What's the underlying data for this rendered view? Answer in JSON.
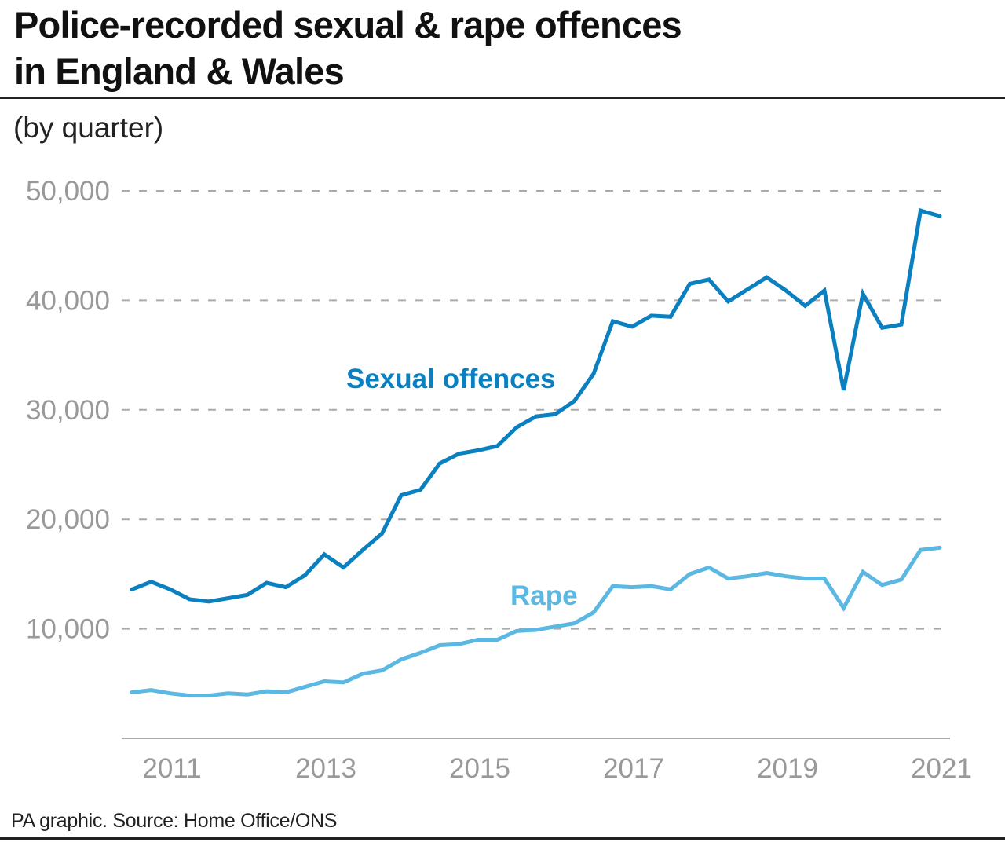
{
  "header": {
    "title_line1": "Police-recorded sexual & rape offences",
    "title_line2": "in England & Wales",
    "subtitle": "(by quarter)"
  },
  "footer": {
    "source": "PA graphic. Source: Home Office/ONS"
  },
  "chart_data": {
    "type": "line",
    "title": "Police-recorded sexual & rape offences in England & Wales",
    "subtitle": "(by quarter)",
    "xlabel": "",
    "ylabel": "",
    "ylim": [
      0,
      50000
    ],
    "xlim": [
      2010.5,
      2021.0
    ],
    "grid": true,
    "y_ticks": [
      10000,
      20000,
      30000,
      40000,
      50000
    ],
    "y_tick_labels": [
      "10,000",
      "20,000",
      "30,000",
      "40,000",
      "50,000"
    ],
    "x_ticks": [
      2011,
      2013,
      2015,
      2017,
      2019,
      2021
    ],
    "x_tick_labels": [
      "2011",
      "2013",
      "2015",
      "2017",
      "2019",
      "2021"
    ],
    "x": [
      2010.5,
      2010.75,
      2011,
      2011.25,
      2011.5,
      2011.75,
      2012,
      2012.25,
      2012.5,
      2012.75,
      2013,
      2013.25,
      2013.5,
      2013.75,
      2014,
      2014.25,
      2014.5,
      2014.75,
      2015,
      2015.25,
      2015.5,
      2015.75,
      2016,
      2016.25,
      2016.5,
      2016.75,
      2017,
      2017.25,
      2017.5,
      2017.75,
      2018,
      2018.25,
      2018.5,
      2018.75,
      2019,
      2019.25,
      2019.5,
      2019.75,
      2020,
      2020.25,
      2020.5,
      2020.75,
      2021
    ],
    "series": [
      {
        "name": "Sexual offences",
        "color": "#0a80c0",
        "values": [
          13600,
          14300,
          13600,
          12700,
          12500,
          12800,
          13100,
          14200,
          13800,
          14900,
          16800,
          15600,
          17200,
          18700,
          22200,
          22700,
          25100,
          26000,
          26300,
          26700,
          28400,
          29400,
          29600,
          30800,
          33300,
          38100,
          37600,
          38600,
          38500,
          41500,
          41900,
          39900,
          41000,
          42100,
          40900,
          39500,
          40900,
          31800,
          40600,
          37500,
          37800,
          48200,
          47700
        ]
      },
      {
        "name": "Rape",
        "color": "#5ab8e2",
        "values": [
          4200,
          4400,
          4100,
          3900,
          3900,
          4100,
          4000,
          4300,
          4200,
          4700,
          5200,
          5100,
          5900,
          6200,
          7200,
          7800,
          8500,
          8600,
          9000,
          9000,
          9800,
          9900,
          10200,
          10500,
          11500,
          13900,
          13800,
          13900,
          13600,
          15000,
          15600,
          14600,
          14800,
          15100,
          14800,
          14600,
          14600,
          11900,
          15200,
          14000,
          14500,
          17200,
          17400
        ]
      }
    ]
  }
}
